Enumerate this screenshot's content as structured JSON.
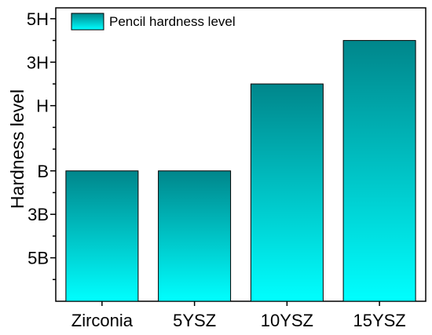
{
  "chart_data": {
    "type": "bar",
    "title": "",
    "xlabel": "",
    "ylabel": "Hardness level",
    "categories": [
      "Zirconia",
      "5YSZ",
      "10YSZ",
      "15YSZ"
    ],
    "y_scale_labels": [
      "6B",
      "5B",
      "4B",
      "3B",
      "2B",
      "B",
      "HB",
      "F",
      "H",
      "2H",
      "3H",
      "4H",
      "5H",
      "6H"
    ],
    "y_tick_labels_shown": [
      "5B",
      "3B",
      "B",
      "H",
      "3H",
      "5H"
    ],
    "series": [
      {
        "name": "Pencil hardness level",
        "values": [
          "B",
          "B",
          "2H",
          "4H"
        ],
        "value_index": [
          5,
          5,
          9,
          11
        ]
      }
    ],
    "ylim_index": [
      -1,
      12.5
    ],
    "grid": false,
    "legend_position": "top-left",
    "bar_color_top": "#00868b",
    "bar_color_bottom": "#00ffff"
  }
}
